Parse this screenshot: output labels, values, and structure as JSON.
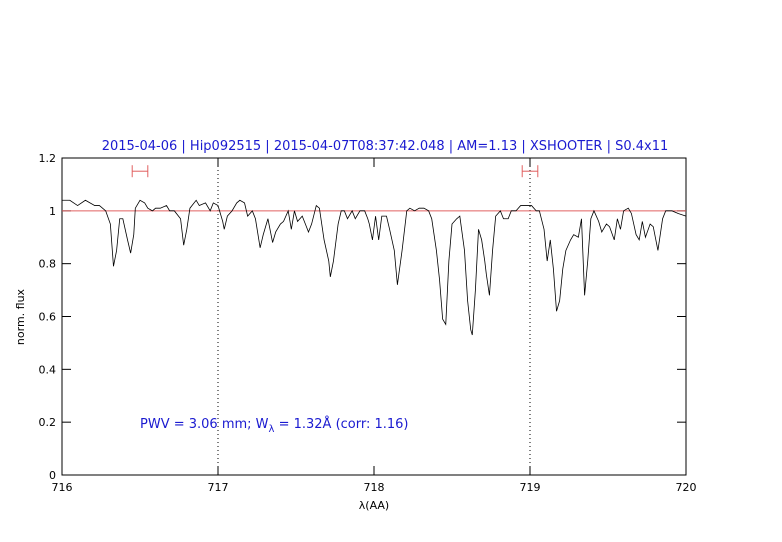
{
  "chart_data": {
    "type": "line",
    "title": "2015-04-06 | Hip092515 | 2015-04-07T08:37:42.048 | AM=1.13 | XSHOOTER | S0.4x11",
    "annotation": [
      "PWV = 3.06 mm; W",
      "λ",
      " = 1.32Å (corr: 1.16)"
    ],
    "xlabel": "λ(AA)",
    "ylabel": "norm. flux",
    "xlim": [
      716,
      720
    ],
    "ylim": [
      0,
      1.2
    ],
    "xticks": [
      716,
      717,
      718,
      719,
      720
    ],
    "yticks": [
      0,
      0.2,
      0.4,
      0.6,
      0.8,
      1,
      1.2
    ],
    "reference_line": {
      "value": 1,
      "color": "#e06060"
    },
    "vlines": [
      717,
      719
    ],
    "windows": [
      {
        "x": [
          716.45,
          716.55
        ],
        "y": 1.15
      },
      {
        "x": [
          718.95,
          719.05
        ],
        "y": 1.15
      }
    ],
    "window_color": "#e06060",
    "x": [
      716.0,
      716.05,
      716.1,
      716.15,
      716.21,
      716.24,
      716.28,
      716.31,
      716.33,
      716.35,
      716.37,
      716.39,
      716.42,
      716.44,
      716.46,
      716.47,
      716.5,
      716.53,
      716.55,
      716.58,
      716.6,
      716.63,
      716.67,
      716.69,
      716.72,
      716.76,
      716.78,
      716.8,
      716.82,
      716.86,
      716.88,
      716.92,
      716.95,
      716.97,
      717.0,
      717.03,
      717.04,
      717.06,
      717.09,
      717.12,
      717.14,
      717.17,
      717.19,
      717.22,
      717.24,
      717.27,
      717.29,
      717.32,
      717.35,
      717.37,
      717.4,
      717.42,
      717.45,
      717.47,
      717.49,
      717.51,
      717.54,
      717.56,
      717.58,
      717.6,
      717.63,
      717.65,
      717.68,
      717.71,
      717.72,
      717.74,
      717.77,
      717.79,
      717.81,
      717.83,
      717.86,
      717.88,
      717.91,
      717.94,
      717.96,
      717.97,
      717.99,
      718.01,
      718.03,
      718.05,
      718.08,
      718.1,
      718.13,
      718.15,
      718.18,
      718.21,
      718.23,
      718.26,
      718.29,
      718.32,
      718.35,
      718.37,
      718.4,
      718.42,
      718.44,
      718.46,
      718.48,
      718.5,
      718.53,
      718.55,
      718.58,
      718.6,
      718.62,
      718.63,
      718.65,
      718.67,
      718.69,
      718.71,
      718.72,
      718.74,
      718.76,
      718.78,
      718.81,
      718.83,
      718.86,
      718.88,
      718.91,
      718.94,
      718.97,
      719.01,
      719.04,
      719.06,
      719.09,
      719.11,
      719.13,
      719.15,
      719.17,
      719.19,
      719.21,
      719.23,
      719.26,
      719.28,
      719.31,
      719.33,
      719.35,
      719.37,
      719.39,
      719.41,
      719.44,
      719.46,
      719.49,
      719.51,
      719.54,
      719.56,
      719.58,
      719.6,
      719.63,
      719.65,
      719.68,
      719.7,
      719.72,
      719.74,
      719.77,
      719.79,
      719.82,
      719.85,
      719.87,
      719.91,
      719.95,
      720.0
    ],
    "series": [
      {
        "color": "#000000",
        "values": [
          1.04,
          1.04,
          1.02,
          1.04,
          1.02,
          1.02,
          1.0,
          0.95,
          0.79,
          0.85,
          0.97,
          0.97,
          0.89,
          0.84,
          0.91,
          1.01,
          1.04,
          1.03,
          1.01,
          1.0,
          1.01,
          1.01,
          1.02,
          1.0,
          1.0,
          0.97,
          0.87,
          0.93,
          1.01,
          1.04,
          1.02,
          1.03,
          1.0,
          1.03,
          1.02,
          0.96,
          0.93,
          0.98,
          1.0,
          1.03,
          1.04,
          1.03,
          0.98,
          1.0,
          0.97,
          0.86,
          0.91,
          0.97,
          0.88,
          0.92,
          0.95,
          0.96,
          1.0,
          0.93,
          1.0,
          0.96,
          0.98,
          0.95,
          0.92,
          0.95,
          1.02,
          1.01,
          0.89,
          0.81,
          0.75,
          0.81,
          0.95,
          1.0,
          1.0,
          0.97,
          1.0,
          0.97,
          1.0,
          1.0,
          0.97,
          0.95,
          0.89,
          0.98,
          0.89,
          0.98,
          0.98,
          0.93,
          0.85,
          0.72,
          0.85,
          1.0,
          1.01,
          1.0,
          1.01,
          1.01,
          1.0,
          0.97,
          0.85,
          0.74,
          0.59,
          0.57,
          0.81,
          0.95,
          0.97,
          0.98,
          0.85,
          0.66,
          0.55,
          0.53,
          0.7,
          0.93,
          0.89,
          0.81,
          0.76,
          0.68,
          0.85,
          0.98,
          1.0,
          0.97,
          0.97,
          1.0,
          1.0,
          1.02,
          1.02,
          1.02,
          1.0,
          1.0,
          0.93,
          0.81,
          0.89,
          0.78,
          0.62,
          0.66,
          0.78,
          0.85,
          0.89,
          0.91,
          0.9,
          0.97,
          0.68,
          0.81,
          0.97,
          1.0,
          0.96,
          0.92,
          0.95,
          0.94,
          0.89,
          0.97,
          0.93,
          1.0,
          1.01,
          0.99,
          0.91,
          0.89,
          0.96,
          0.9,
          0.95,
          0.94,
          0.85,
          0.97,
          1.0,
          1.0,
          0.99,
          0.98
        ]
      }
    ]
  }
}
